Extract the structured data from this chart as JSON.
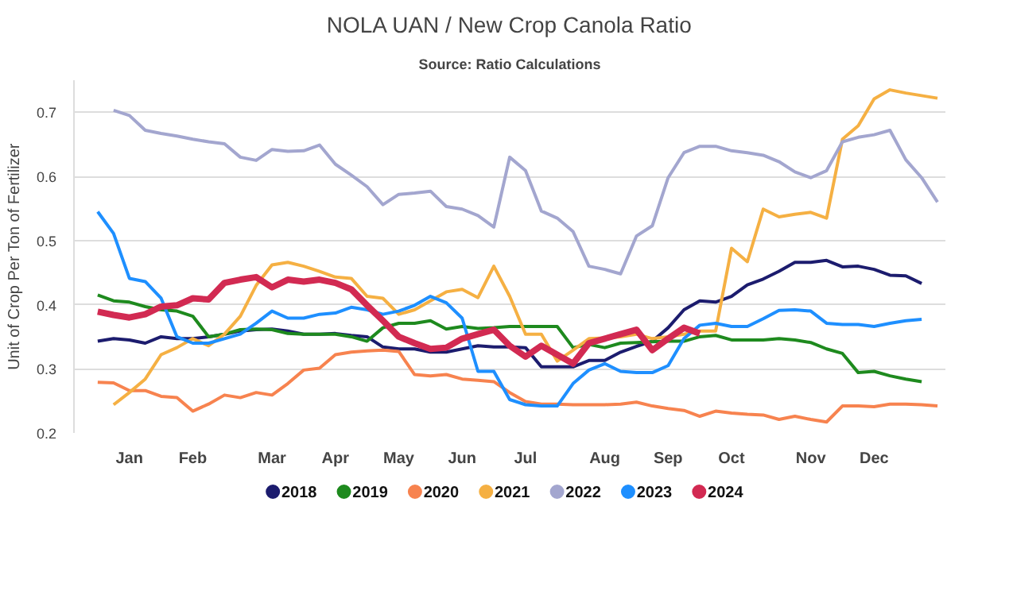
{
  "chart_data": {
    "type": "line",
    "title": "NOLA UAN / New Crop Canola Ratio",
    "subtitle": "Source: Ratio Calculations",
    "ylabel": "Unit of Crop Per Ton of Fertilizer",
    "categories": [
      null,
      null,
      null,
      "Jan",
      null,
      null,
      null,
      "Feb",
      null,
      null,
      null,
      null,
      "Mar",
      null,
      null,
      null,
      "Apr",
      null,
      null,
      null,
      "May",
      null,
      null,
      null,
      "Jun",
      null,
      null,
      null,
      "Jul",
      null,
      null,
      null,
      null,
      "Aug",
      null,
      null,
      null,
      "Sep",
      null,
      null,
      null,
      "Oct",
      null,
      null,
      null,
      null,
      "Nov",
      null,
      null,
      null,
      "Dec",
      null,
      null,
      null,
      null
    ],
    "ylim": [
      0.2,
      0.75
    ],
    "yticks": [
      0.2,
      0.3,
      0.4,
      0.5,
      0.6,
      0.7
    ],
    "grid": "y",
    "legend": "bottom",
    "line_style": "solid",
    "series": [
      {
        "name": "2018",
        "color": "#1c1c6e",
        "values": [
          null,
          0.343,
          0.347,
          0.345,
          0.34,
          0.35,
          0.347,
          0.347,
          0.35,
          0.354,
          0.359,
          0.361,
          0.362,
          0.359,
          0.354,
          0.354,
          0.355,
          0.352,
          0.35,
          0.334,
          0.331,
          0.331,
          0.326,
          0.326,
          0.331,
          0.336,
          0.334,
          0.334,
          0.333,
          0.303,
          0.303,
          0.303,
          0.313,
          0.313,
          0.326,
          0.335,
          0.343,
          0.364,
          0.392,
          0.406,
          0.404,
          0.413,
          0.431,
          0.44,
          0.452,
          0.466,
          0.466,
          0.469,
          0.459,
          0.46,
          0.455,
          0.446,
          0.445,
          0.433,
          null
        ]
      },
      {
        "name": "2019",
        "color": "#1e8a1e",
        "values": [
          null,
          0.415,
          0.406,
          0.404,
          0.397,
          0.392,
          0.39,
          0.382,
          0.35,
          0.354,
          0.361,
          0.362,
          0.361,
          0.355,
          0.354,
          0.354,
          0.354,
          0.35,
          0.343,
          0.364,
          0.371,
          0.371,
          0.375,
          0.362,
          0.366,
          0.363,
          0.364,
          0.366,
          0.366,
          0.366,
          0.366,
          0.333,
          0.338,
          0.333,
          0.34,
          0.341,
          0.342,
          0.343,
          0.343,
          0.35,
          0.352,
          0.345,
          0.345,
          0.345,
          0.347,
          0.345,
          0.341,
          0.331,
          0.324,
          0.294,
          0.296,
          0.289,
          0.284,
          0.28,
          null
        ]
      },
      {
        "name": "2020",
        "color": "#f7834f",
        "values": [
          null,
          0.279,
          0.278,
          0.266,
          0.266,
          0.257,
          0.255,
          0.234,
          0.245,
          0.259,
          0.255,
          0.263,
          0.259,
          0.277,
          0.298,
          0.301,
          0.322,
          0.326,
          0.328,
          0.329,
          0.327,
          0.291,
          0.289,
          0.291,
          0.284,
          0.282,
          0.28,
          0.263,
          0.249,
          0.245,
          0.245,
          0.244,
          0.244,
          0.244,
          0.245,
          0.248,
          0.242,
          0.238,
          0.235,
          0.226,
          0.234,
          0.231,
          0.229,
          0.228,
          0.221,
          0.226,
          0.221,
          0.217,
          0.242,
          0.242,
          0.241,
          0.245,
          0.245,
          0.244,
          0.242
        ]
      },
      {
        "name": "2021",
        "color": "#f5b043",
        "values": [
          null,
          null,
          0.244,
          0.263,
          0.284,
          0.322,
          0.333,
          0.347,
          0.336,
          0.354,
          0.382,
          0.43,
          0.462,
          0.466,
          0.46,
          0.452,
          0.443,
          0.441,
          0.413,
          0.41,
          0.385,
          0.392,
          0.406,
          0.42,
          0.424,
          0.411,
          0.46,
          0.413,
          0.354,
          0.354,
          0.312,
          0.329,
          0.347,
          0.348,
          0.35,
          0.354,
          0.347,
          0.35,
          0.354,
          0.359,
          0.359,
          0.488,
          0.467,
          0.549,
          0.537,
          0.541,
          0.544,
          0.535,
          0.658,
          0.679,
          0.721,
          0.735,
          0.73,
          0.726,
          0.722
        ]
      },
      {
        "name": "2022",
        "color": "#a3a6cf",
        "values": [
          null,
          null,
          0.703,
          0.695,
          0.672,
          0.667,
          0.663,
          0.658,
          0.654,
          0.651,
          0.63,
          0.625,
          0.642,
          0.639,
          0.64,
          0.649,
          0.619,
          0.602,
          0.584,
          0.556,
          0.572,
          0.574,
          0.577,
          0.553,
          0.549,
          0.539,
          0.521,
          0.63,
          0.609,
          0.546,
          0.535,
          0.514,
          0.46,
          0.455,
          0.448,
          0.507,
          0.523,
          0.598,
          0.637,
          0.647,
          0.647,
          0.64,
          0.637,
          0.633,
          0.623,
          0.607,
          0.598,
          0.609,
          0.654,
          0.661,
          0.665,
          0.672,
          0.626,
          0.598,
          0.56
        ]
      },
      {
        "name": "2023",
        "color": "#1e8fff",
        "values": [
          null,
          0.545,
          0.511,
          0.441,
          0.436,
          0.41,
          0.35,
          0.34,
          0.34,
          0.347,
          0.354,
          0.371,
          0.39,
          0.379,
          0.379,
          0.385,
          0.387,
          0.396,
          0.392,
          0.385,
          0.39,
          0.399,
          0.413,
          0.403,
          0.379,
          0.296,
          0.296,
          0.252,
          0.244,
          0.242,
          0.242,
          0.277,
          0.298,
          0.308,
          0.296,
          0.294,
          0.294,
          0.305,
          0.347,
          0.368,
          0.371,
          0.366,
          0.366,
          0.378,
          0.391,
          0.392,
          0.39,
          0.371,
          0.369,
          0.369,
          0.366,
          0.371,
          0.375,
          0.377,
          null
        ]
      },
      {
        "name": "2024",
        "color": "#d22a52",
        "values": [
          null,
          0.389,
          0.384,
          0.38,
          0.385,
          0.397,
          0.399,
          0.41,
          0.408,
          0.434,
          0.439,
          0.443,
          0.427,
          0.439,
          0.436,
          0.439,
          0.434,
          0.424,
          0.399,
          0.375,
          0.35,
          0.34,
          0.331,
          0.333,
          0.347,
          0.354,
          0.361,
          0.336,
          0.319,
          0.336,
          0.322,
          0.308,
          0.34,
          0.347,
          0.354,
          0.361,
          0.329,
          0.347,
          0.364,
          0.355,
          null,
          null,
          null,
          null,
          null,
          null,
          null,
          null,
          null,
          null,
          null,
          null,
          null,
          null,
          null
        ]
      }
    ]
  }
}
